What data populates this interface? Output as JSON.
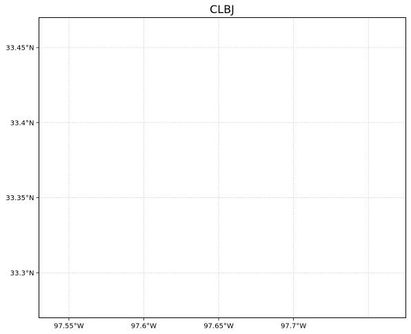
{
  "map": {
    "title": "CLBJ",
    "x_ticks": [
      {
        "value": -97.55,
        "label": "97.55°W"
      },
      {
        "value": -97.6,
        "label": "97.6°W"
      },
      {
        "value": -97.65,
        "label": "97.65°W"
      },
      {
        "value": -97.7,
        "label": "97.7°W"
      },
      {
        "value": -97.75,
        "label": ""
      }
    ],
    "y_ticks": [
      {
        "value": 33.45,
        "label": "33.45°N"
      },
      {
        "value": 33.4,
        "label": "33.4°N"
      },
      {
        "value": 33.35,
        "label": "33.35°N"
      },
      {
        "value": 33.3,
        "label": "33.3°N"
      }
    ],
    "x_range": [
      -97.53,
      -97.775
    ],
    "y_range": [
      33.27,
      33.47
    ],
    "grid": true,
    "grid_style": "dotted",
    "grid_color": "#b0b0b0",
    "frame_color": "#000000"
  }
}
